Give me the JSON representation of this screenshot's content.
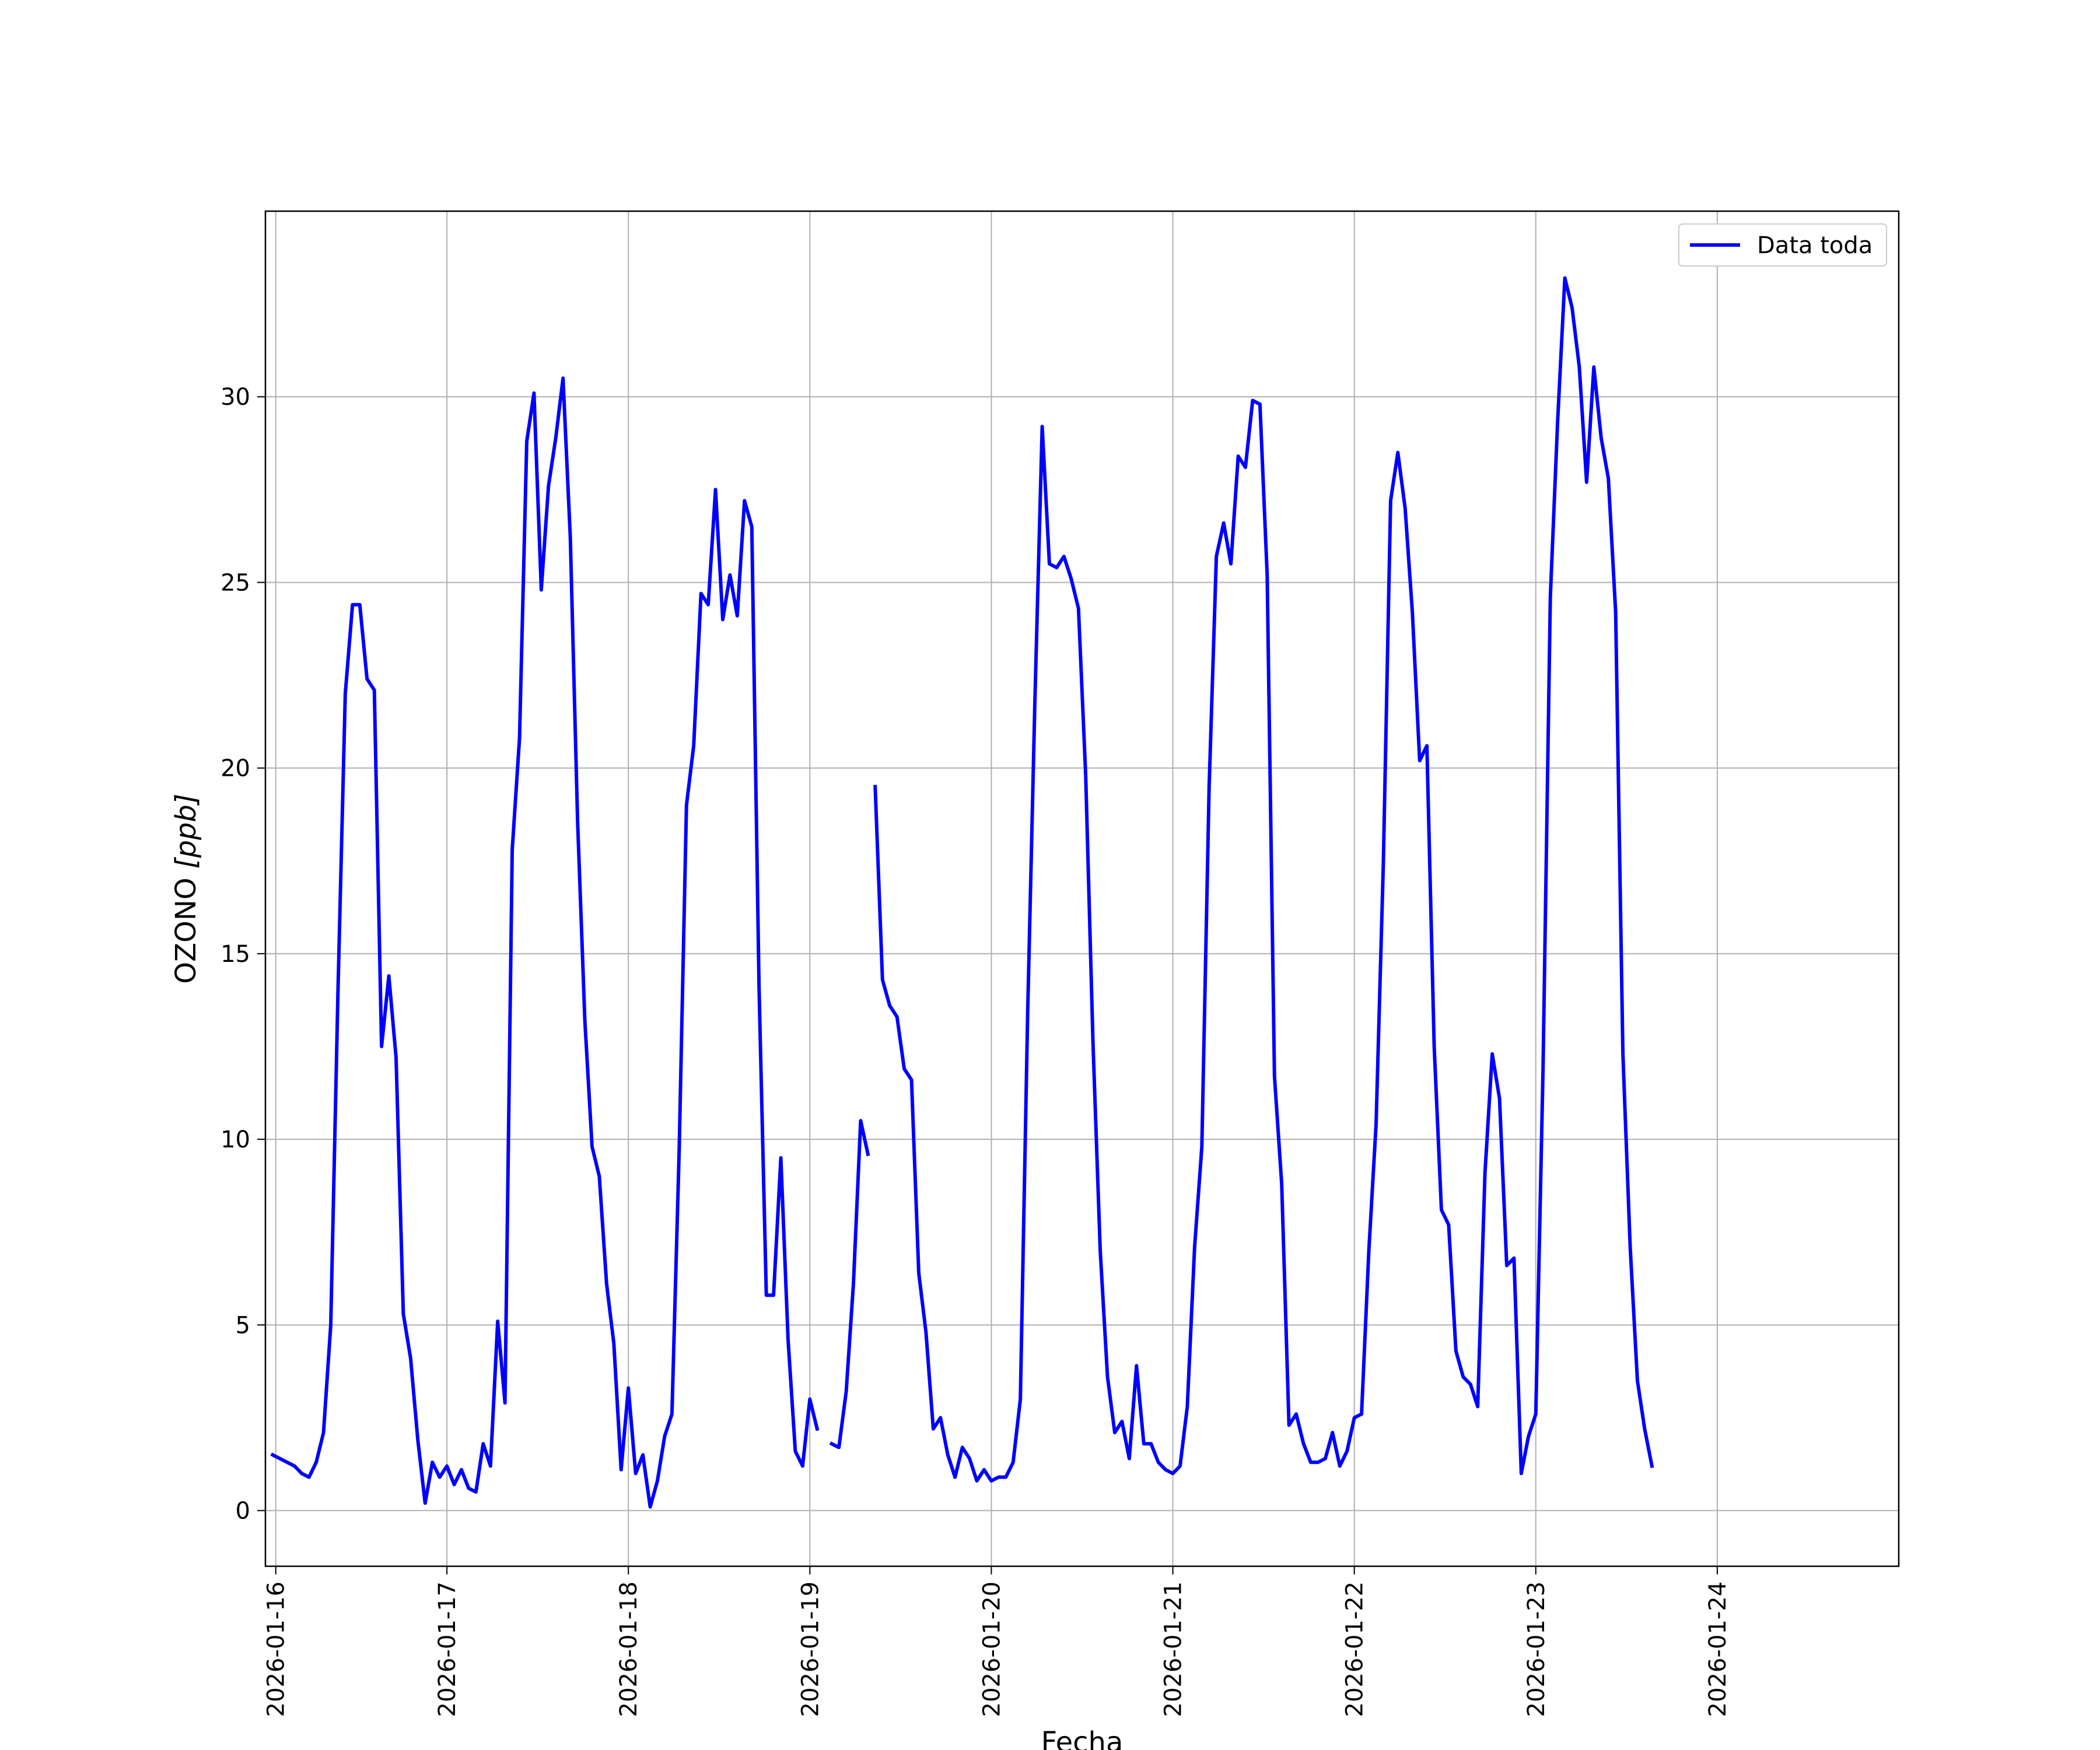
{
  "chart_data": {
    "type": "line",
    "xlabel": "Fecha",
    "ylabel": "OZONO [ppb]",
    "ylabel_main": "OZONO ",
    "ylabel_unit": "[ppb]",
    "xlim": [
      0,
      9.0
    ],
    "ylim": [
      -1.5,
      35
    ],
    "x_ticks": [
      {
        "value": 0.057,
        "label": "2026-01-16"
      },
      {
        "value": 1.0,
        "label": "2026-01-17"
      },
      {
        "value": 2.0,
        "label": "2026-01-18"
      },
      {
        "value": 3.0,
        "label": "2026-01-19"
      },
      {
        "value": 4.0,
        "label": "2026-01-20"
      },
      {
        "value": 5.0,
        "label": "2026-01-21"
      },
      {
        "value": 6.0,
        "label": "2026-01-22"
      },
      {
        "value": 7.0,
        "label": "2026-01-23"
      },
      {
        "value": 8.0,
        "label": "2026-01-24"
      }
    ],
    "y_ticks": [
      {
        "value": 0,
        "label": "0"
      },
      {
        "value": 5,
        "label": "5"
      },
      {
        "value": 10,
        "label": "10"
      },
      {
        "value": 15,
        "label": "15"
      },
      {
        "value": 20,
        "label": "20"
      },
      {
        "value": 25,
        "label": "25"
      },
      {
        "value": 30,
        "label": "30"
      }
    ],
    "grid": true,
    "legend_position": "top-right",
    "series": [
      {
        "name": "Data toda",
        "color": "#0000ff",
        "segments": [
          [
            [
              0.04,
              1.5
            ],
            [
              0.08,
              1.4
            ],
            [
              0.12,
              1.3
            ],
            [
              0.16,
              1.2
            ],
            [
              0.2,
              1.0
            ],
            [
              0.24,
              0.9
            ],
            [
              0.28,
              1.3
            ],
            [
              0.32,
              2.1
            ],
            [
              0.36,
              5.0
            ],
            [
              0.4,
              14.0
            ],
            [
              0.44,
              22.0
            ],
            [
              0.48,
              24.4
            ],
            [
              0.52,
              24.4
            ],
            [
              0.56,
              22.4
            ],
            [
              0.6,
              22.1
            ],
            [
              0.64,
              12.5
            ],
            [
              0.68,
              14.4
            ],
            [
              0.72,
              12.2
            ],
            [
              0.76,
              5.3
            ],
            [
              0.8,
              4.1
            ],
            [
              0.84,
              1.9
            ],
            [
              0.88,
              0.2
            ],
            [
              0.92,
              1.3
            ],
            [
              0.96,
              0.9
            ],
            [
              1.0,
              1.2
            ],
            [
              1.04,
              0.7
            ],
            [
              1.08,
              1.1
            ],
            [
              1.12,
              0.6
            ],
            [
              1.16,
              0.5
            ],
            [
              1.2,
              1.8
            ],
            [
              1.24,
              1.2
            ],
            [
              1.28,
              5.1
            ],
            [
              1.32,
              2.9
            ],
            [
              1.36,
              17.8
            ],
            [
              1.4,
              20.8
            ],
            [
              1.44,
              28.8
            ],
            [
              1.48,
              30.1
            ],
            [
              1.52,
              24.8
            ],
            [
              1.56,
              27.6
            ],
            [
              1.6,
              28.9
            ],
            [
              1.64,
              30.5
            ],
            [
              1.68,
              26.2
            ],
            [
              1.72,
              18.6
            ],
            [
              1.76,
              13.2
            ],
            [
              1.8,
              9.8
            ],
            [
              1.84,
              9.0
            ],
            [
              1.88,
              6.1
            ],
            [
              1.92,
              4.5
            ],
            [
              1.96,
              1.1
            ],
            [
              2.0,
              3.3
            ],
            [
              2.04,
              1.0
            ],
            [
              2.08,
              1.5
            ],
            [
              2.12,
              0.1
            ],
            [
              2.16,
              0.8
            ],
            [
              2.2,
              2.0
            ],
            [
              2.24,
              2.6
            ],
            [
              2.28,
              9.7
            ],
            [
              2.32,
              19.0
            ],
            [
              2.36,
              20.6
            ],
            [
              2.4,
              24.7
            ],
            [
              2.44,
              24.4
            ],
            [
              2.48,
              27.5
            ],
            [
              2.52,
              24.0
            ],
            [
              2.56,
              25.2
            ],
            [
              2.6,
              24.1
            ],
            [
              2.64,
              27.2
            ],
            [
              2.68,
              26.5
            ],
            [
              2.72,
              14.1
            ],
            [
              2.76,
              5.8
            ],
            [
              2.8,
              5.8
            ],
            [
              2.84,
              9.5
            ],
            [
              2.88,
              4.6
            ],
            [
              2.92,
              1.6
            ],
            [
              2.96,
              1.2
            ],
            [
              3.0,
              3.0
            ],
            [
              3.04,
              2.2
            ]
          ],
          [
            [
              3.12,
              1.8
            ],
            [
              3.16,
              1.7
            ],
            [
              3.2,
              3.2
            ],
            [
              3.24,
              6.1
            ],
            [
              3.28,
              10.5
            ],
            [
              3.32,
              9.6
            ]
          ],
          [
            [
              3.36,
              19.5
            ],
            [
              3.4,
              14.3
            ],
            [
              3.44,
              13.6
            ],
            [
              3.48,
              13.3
            ],
            [
              3.52,
              11.9
            ],
            [
              3.56,
              11.6
            ],
            [
              3.6,
              6.4
            ],
            [
              3.64,
              4.8
            ],
            [
              3.68,
              2.2
            ],
            [
              3.72,
              2.5
            ],
            [
              3.76,
              1.5
            ],
            [
              3.8,
              0.9
            ],
            [
              3.84,
              1.7
            ],
            [
              3.88,
              1.4
            ],
            [
              3.92,
              0.8
            ],
            [
              3.96,
              1.1
            ],
            [
              4.0,
              0.8
            ],
            [
              4.04,
              0.9
            ],
            [
              4.08,
              0.9
            ],
            [
              4.12,
              1.3
            ],
            [
              4.16,
              3.0
            ],
            [
              4.2,
              13.4
            ],
            [
              4.24,
              21.8
            ],
            [
              4.28,
              29.2
            ],
            [
              4.32,
              25.5
            ],
            [
              4.36,
              25.4
            ],
            [
              4.4,
              25.7
            ],
            [
              4.44,
              25.1
            ],
            [
              4.48,
              24.3
            ],
            [
              4.52,
              19.8
            ],
            [
              4.56,
              12.6
            ],
            [
              4.6,
              7.0
            ],
            [
              4.64,
              3.6
            ],
            [
              4.68,
              2.1
            ],
            [
              4.72,
              2.4
            ],
            [
              4.76,
              1.4
            ],
            [
              4.8,
              3.9
            ],
            [
              4.84,
              1.8
            ],
            [
              4.88,
              1.8
            ],
            [
              4.92,
              1.3
            ],
            [
              4.96,
              1.1
            ],
            [
              5.0,
              1.0
            ],
            [
              5.04,
              1.2
            ],
            [
              5.08,
              2.8
            ],
            [
              5.12,
              7.1
            ],
            [
              5.16,
              9.8
            ],
            [
              5.2,
              19.5
            ],
            [
              5.24,
              25.7
            ],
            [
              5.28,
              26.6
            ],
            [
              5.32,
              25.5
            ],
            [
              5.36,
              28.4
            ],
            [
              5.4,
              28.1
            ],
            [
              5.44,
              29.9
            ],
            [
              5.48,
              29.8
            ],
            [
              5.52,
              25.2
            ],
            [
              5.56,
              11.7
            ],
            [
              5.6,
              8.8
            ],
            [
              5.64,
              2.3
            ],
            [
              5.68,
              2.6
            ],
            [
              5.72,
              1.8
            ],
            [
              5.76,
              1.3
            ],
            [
              5.8,
              1.3
            ],
            [
              5.84,
              1.4
            ],
            [
              5.88,
              2.1
            ],
            [
              5.92,
              1.2
            ],
            [
              5.96,
              1.6
            ],
            [
              6.0,
              2.5
            ],
            [
              6.04,
              2.6
            ],
            [
              6.08,
              7.0
            ],
            [
              6.12,
              10.4
            ],
            [
              6.16,
              17.4
            ],
            [
              6.2,
              27.2
            ],
            [
              6.24,
              28.5
            ],
            [
              6.28,
              27.0
            ],
            [
              6.32,
              24.2
            ],
            [
              6.36,
              20.2
            ],
            [
              6.4,
              20.6
            ],
            [
              6.44,
              12.5
            ],
            [
              6.48,
              8.1
            ],
            [
              6.52,
              7.7
            ],
            [
              6.56,
              4.3
            ],
            [
              6.6,
              3.6
            ],
            [
              6.64,
              3.4
            ],
            [
              6.68,
              2.8
            ],
            [
              6.72,
              9.1
            ],
            [
              6.76,
              12.3
            ],
            [
              6.8,
              11.1
            ],
            [
              6.84,
              6.6
            ],
            [
              6.88,
              6.8
            ],
            [
              6.92,
              1.0
            ],
            [
              6.96,
              2.0
            ],
            [
              7.0,
              2.6
            ],
            [
              7.04,
              11.9
            ],
            [
              7.08,
              24.6
            ],
            [
              7.12,
              29.3
            ],
            [
              7.16,
              33.2
            ],
            [
              7.2,
              32.4
            ],
            [
              7.24,
              30.8
            ],
            [
              7.28,
              27.7
            ],
            [
              7.32,
              30.8
            ],
            [
              7.36,
              28.9
            ],
            [
              7.4,
              27.8
            ],
            [
              7.44,
              24.2
            ],
            [
              7.48,
              12.3
            ],
            [
              7.52,
              7.1
            ],
            [
              7.56,
              3.5
            ],
            [
              7.6,
              2.2
            ],
            [
              7.64,
              1.2
            ]
          ]
        ]
      }
    ]
  }
}
